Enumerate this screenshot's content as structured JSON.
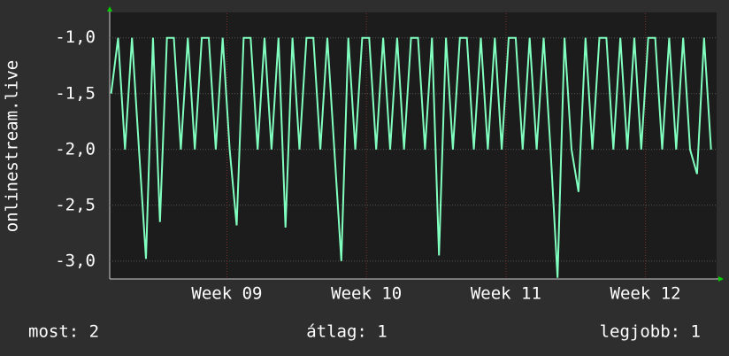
{
  "chart_data": {
    "type": "line",
    "y_label": "onlinestream.live",
    "x": [
      8.17,
      8.22,
      8.27,
      8.32,
      8.37,
      8.42,
      8.47,
      8.52,
      8.57,
      8.62,
      8.67,
      8.72,
      8.77,
      8.82,
      8.87,
      8.92,
      8.97,
      9.02,
      9.07,
      9.12,
      9.17,
      9.22,
      9.27,
      9.32,
      9.37,
      9.42,
      9.47,
      9.52,
      9.57,
      9.62,
      9.67,
      9.72,
      9.77,
      9.82,
      9.87,
      9.92,
      9.97,
      10.02,
      10.07,
      10.12,
      10.17,
      10.22,
      10.27,
      10.32,
      10.37,
      10.42,
      10.47,
      10.52,
      10.57,
      10.62,
      10.67,
      10.72,
      10.77,
      10.82,
      10.87,
      10.92,
      10.97,
      11.02,
      11.07,
      11.12,
      11.17,
      11.22,
      11.27,
      11.32,
      11.37,
      11.42,
      11.47,
      11.52,
      11.57,
      11.62,
      11.67,
      11.72,
      11.77,
      11.82,
      11.87,
      11.92,
      11.97,
      12.02,
      12.07,
      12.12,
      12.17,
      12.22,
      12.27,
      12.32,
      12.37,
      12.42,
      12.47
    ],
    "series": [
      {
        "color": "#80ffbf",
        "values": [
          -1.5,
          -1,
          -2,
          -1,
          -2,
          -2.98,
          -1,
          -2.65,
          -1,
          -1,
          -2,
          -1,
          -2,
          -1,
          -1,
          -2,
          -1,
          -2,
          -2.68,
          -1,
          -1,
          -2,
          -1,
          -2,
          -1,
          -2.7,
          -1,
          -2,
          -1,
          -1,
          -2,
          -1,
          -2,
          -3.0,
          -1,
          -2,
          -1,
          -1,
          -2,
          -1,
          -2,
          -1,
          -2,
          -1,
          -1,
          -2,
          -1,
          -2.95,
          -1,
          -2,
          -1,
          -1,
          -2,
          -1,
          -2,
          -1,
          -2,
          -1,
          -1,
          -2,
          -1,
          -2,
          -1,
          -2,
          -3.15,
          -1,
          -2,
          -2.38,
          -1,
          -2,
          -1,
          -1,
          -2,
          -1,
          -2,
          -1,
          -2,
          -1,
          -1,
          -2,
          -1,
          -2,
          -1,
          -2,
          -2.22,
          -1,
          -2
        ]
      }
    ],
    "xlim": [
      8.16,
      12.51
    ],
    "xticks": [
      {
        "value": 9,
        "label": "Week 09"
      },
      {
        "value": 10,
        "label": "Week 10"
      },
      {
        "value": 11,
        "label": "Week 11"
      },
      {
        "value": 12,
        "label": "Week 12"
      }
    ],
    "ylim": [
      -3.16,
      -0.78
    ],
    "yticks": [
      {
        "value": -1,
        "label": "-1,0"
      },
      {
        "value": -1.5,
        "label": "-1,5"
      },
      {
        "value": -2,
        "label": "-2,0"
      },
      {
        "value": -2.5,
        "label": "-2,5"
      },
      {
        "value": -3,
        "label": "-3,0"
      }
    ],
    "grid": true,
    "stats": [
      "most: 2",
      "átlag: 1",
      "legjobb: 1"
    ]
  }
}
